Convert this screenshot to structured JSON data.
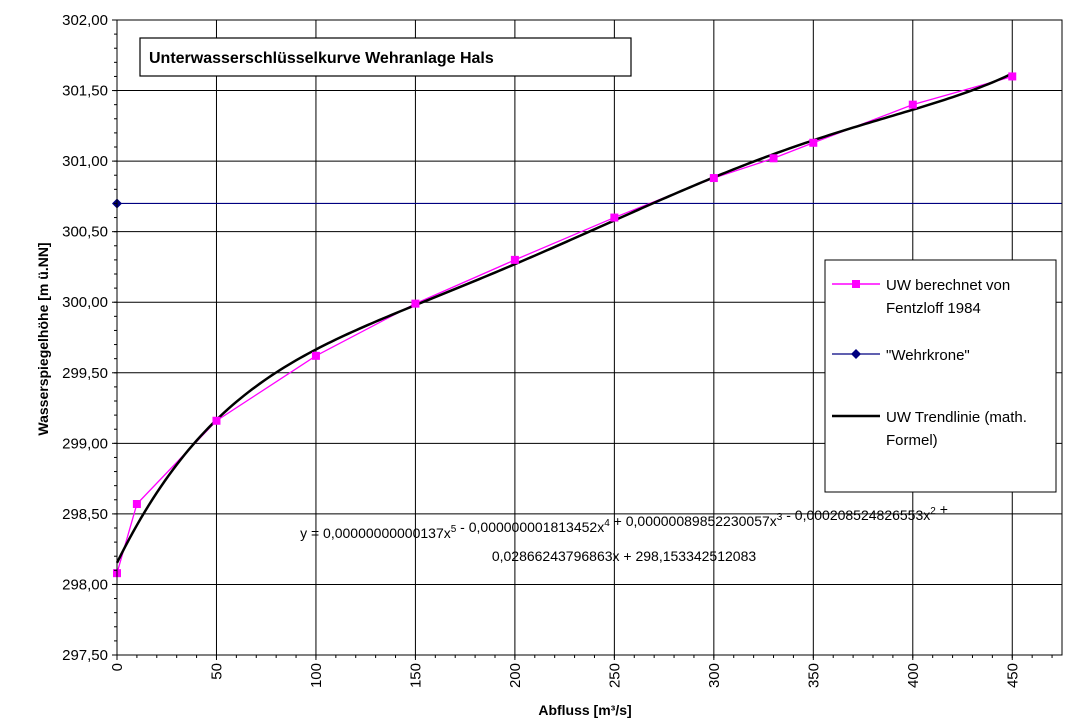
{
  "chart_data": {
    "type": "line",
    "title": "Unterwasserschlüsselkurve Wehranlage Hals",
    "xlabel": "Abfluss [m³/s]",
    "ylabel": "Wasserspiegelhöhe [m ü.NN]",
    "xlim": [
      0,
      475
    ],
    "ylim": [
      297.5,
      302.0
    ],
    "x_ticks": [
      "0",
      "50",
      "100",
      "150",
      "200",
      "250",
      "300",
      "350",
      "400",
      "450"
    ],
    "y_ticks": [
      "297,50",
      "298,00",
      "298,50",
      "299,00",
      "299,50",
      "300,00",
      "300,50",
      "301,00",
      "301,50",
      "302,00"
    ],
    "grid": true,
    "legend_position": "right",
    "series": [
      {
        "name": "UW berechnet von Fentzloff 1984",
        "color": "#ff00ff",
        "marker": "square",
        "x": [
          0,
          10,
          50,
          100,
          150,
          200,
          250,
          300,
          330,
          350,
          400,
          450
        ],
        "y": [
          298.08,
          298.57,
          299.16,
          299.62,
          299.99,
          300.3,
          300.6,
          300.88,
          301.02,
          301.13,
          301.4,
          301.6
        ]
      },
      {
        "name": "\"Wehrkrone\"",
        "color": "#000080",
        "marker": "diamond",
        "x": [
          0,
          475
        ],
        "y": [
          300.7,
          300.7
        ]
      },
      {
        "name": "UW Trendlinie (math. Formel)",
        "color": "#000000",
        "marker": "none",
        "formula": {
          "coefficients": [
            298.153342512083,
            0.02866243796863,
            -0.000208524826553,
            8.9852230057e-07,
            -1.813452e-09,
            1.37e-12
          ]
        }
      }
    ],
    "equation": {
      "line1": {
        "parts": [
          {
            "t": "y = 0,00000000000137x",
            "sup": "5"
          },
          {
            "t": " - 0,000000001813452x",
            "sup": "4"
          },
          {
            "t": " + 0,00000089852230057x",
            "sup": "3"
          },
          {
            "t": " - 0,000208524826553x",
            "sup": "2"
          },
          {
            "t": " +",
            "sup": ""
          }
        ]
      },
      "line2": "0,02866243796863x + 298,153342512083"
    },
    "legend": {
      "item1_line1": "UW berechnet von",
      "item1_line2": "Fentzloff 1984",
      "item2": "\"Wehrkrone\"",
      "item3_line1": "UW Trendlinie (math.",
      "item3_line2": "Formel)"
    }
  }
}
